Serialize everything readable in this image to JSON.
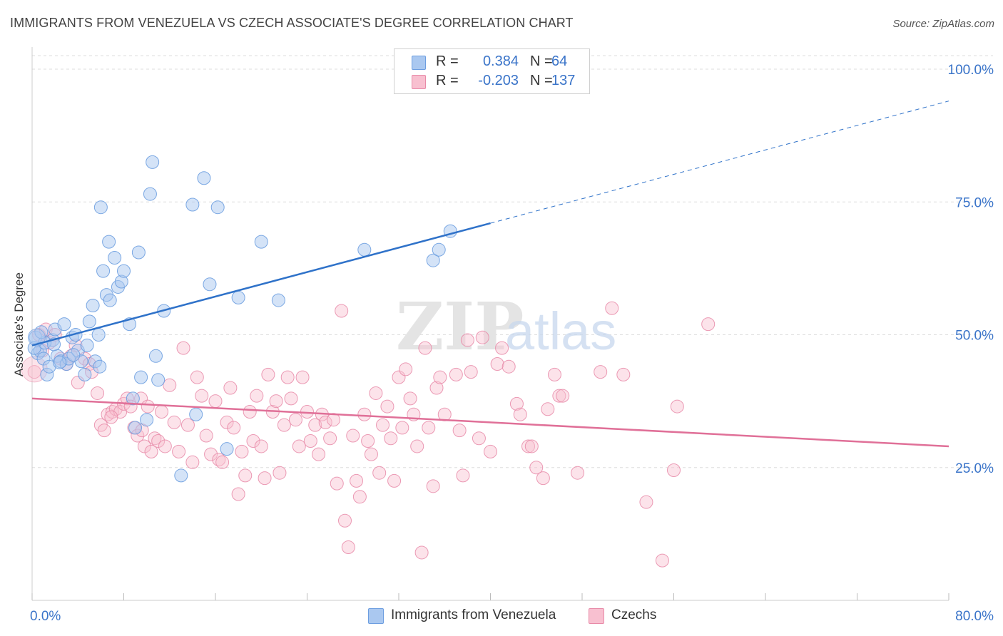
{
  "title": "IMMIGRANTS FROM VENEZUELA VS CZECH ASSOCIATE'S DEGREE CORRELATION CHART",
  "source": "Source: ZipAtlas.com",
  "legend": {
    "rows": [
      {
        "r_label": "R =",
        "r_value": "0.384",
        "n_label": "N =",
        "n_value": "64",
        "color": "#aac8f0",
        "border": "#6d9ee0"
      },
      {
        "r_label": "R =",
        "r_value": "-0.203",
        "n_label": "N =",
        "n_value": "137",
        "color": "#f8c0d0",
        "border": "#e88aa8"
      }
    ]
  },
  "bottom_legend": {
    "series1": "Immigrants from Venezuela",
    "series2": "Czechs"
  },
  "watermark": "ZIPatlas",
  "chart_data": {
    "type": "scatter",
    "title": "IMMIGRANTS FROM VENEZUELA VS CZECH ASSOCIATE'S DEGREE CORRELATION CHART",
    "xlabel": "",
    "ylabel": "Associate's Degree",
    "xlim": [
      0,
      80
    ],
    "ylim": [
      0,
      100
    ],
    "x_tick_labels": [
      "0.0%",
      "80.0%"
    ],
    "y_tick_labels": [
      "25.0%",
      "50.0%",
      "75.0%",
      "100.0%"
    ],
    "y_ticks": [
      25,
      50,
      75,
      100
    ],
    "grid": true,
    "legend_position": "top-center",
    "colors": {
      "blue": "#6d9ee0",
      "blue_fill": "#aac8f0",
      "blue_line": "#2f72c9",
      "pink": "#e88aa8",
      "pink_fill": "#f8c0d0",
      "pink_line": "#e07098",
      "axis_text": "#3a74c9"
    },
    "series": [
      {
        "name": "Immigrants from Venezuela",
        "trend": {
          "x0": 0,
          "y0": 48.0,
          "x1": 40,
          "y1": 71.0,
          "dashed_to_x": 80,
          "dashed_to_y": 94.0
        },
        "points": [
          [
            0.3,
            49.5
          ],
          [
            0.5,
            46.5
          ],
          [
            0.7,
            47.0
          ],
          [
            1.0,
            45.5
          ],
          [
            1.3,
            42.5
          ],
          [
            1.5,
            44.0
          ],
          [
            1.8,
            49.0
          ],
          [
            2.0,
            51.0
          ],
          [
            2.2,
            46.0
          ],
          [
            2.5,
            45.0
          ],
          [
            2.8,
            52.0
          ],
          [
            3.0,
            44.5
          ],
          [
            3.2,
            45.5
          ],
          [
            3.5,
            49.5
          ],
          [
            3.8,
            50.0
          ],
          [
            4.0,
            47.0
          ],
          [
            4.3,
            45.0
          ],
          [
            4.6,
            42.5
          ],
          [
            5.0,
            52.5
          ],
          [
            5.3,
            55.5
          ],
          [
            5.5,
            45.0
          ],
          [
            5.8,
            50.0
          ],
          [
            6.0,
            74.0
          ],
          [
            6.2,
            62.0
          ],
          [
            6.5,
            57.5
          ],
          [
            6.8,
            56.5
          ],
          [
            6.7,
            67.5
          ],
          [
            7.2,
            64.5
          ],
          [
            7.5,
            59.0
          ],
          [
            7.8,
            60.0
          ],
          [
            8.0,
            62.0
          ],
          [
            8.5,
            52.0
          ],
          [
            8.8,
            38.0
          ],
          [
            9.0,
            32.5
          ],
          [
            9.3,
            65.5
          ],
          [
            9.5,
            42.0
          ],
          [
            10.0,
            34.0
          ],
          [
            10.3,
            76.5
          ],
          [
            10.5,
            82.5
          ],
          [
            10.8,
            46.0
          ],
          [
            11.0,
            41.5
          ],
          [
            11.5,
            54.5
          ],
          [
            13.0,
            23.5
          ],
          [
            14.0,
            74.5
          ],
          [
            14.3,
            35.0
          ],
          [
            15.0,
            79.5
          ],
          [
            15.5,
            59.5
          ],
          [
            16.2,
            74.0
          ],
          [
            17.0,
            28.5
          ],
          [
            18.0,
            57.0
          ],
          [
            20.0,
            67.5
          ],
          [
            21.5,
            56.5
          ],
          [
            29.0,
            66.0
          ],
          [
            35.0,
            64.0
          ],
          [
            35.5,
            66.0
          ],
          [
            36.5,
            69.5
          ],
          [
            0.2,
            47.5
          ],
          [
            1.1,
            48.5
          ],
          [
            2.4,
            44.8
          ],
          [
            3.6,
            46.2
          ],
          [
            4.8,
            48.0
          ],
          [
            5.9,
            44.0
          ],
          [
            0.8,
            50.5
          ],
          [
            1.9,
            48.2
          ]
        ]
      },
      {
        "name": "Czechs",
        "trend": {
          "x0": 0,
          "y0": 38.0,
          "x1": 80,
          "y1": 29.0
        },
        "points": [
          [
            0.2,
            43.0
          ],
          [
            0.6,
            50.0
          ],
          [
            1.2,
            51.0
          ],
          [
            1.5,
            48.5
          ],
          [
            2.0,
            50.0
          ],
          [
            2.5,
            45.5
          ],
          [
            3.0,
            44.5
          ],
          [
            3.4,
            46.0
          ],
          [
            4.0,
            41.0
          ],
          [
            4.6,
            45.5
          ],
          [
            5.0,
            44.5
          ],
          [
            5.2,
            43.0
          ],
          [
            5.7,
            39.0
          ],
          [
            6.0,
            33.0
          ],
          [
            6.3,
            32.0
          ],
          [
            6.6,
            35.0
          ],
          [
            7.0,
            35.5
          ],
          [
            7.3,
            36.0
          ],
          [
            7.7,
            35.5
          ],
          [
            8.0,
            37.0
          ],
          [
            8.3,
            38.0
          ],
          [
            8.6,
            36.5
          ],
          [
            8.9,
            32.5
          ],
          [
            9.2,
            31.0
          ],
          [
            9.5,
            38.0
          ],
          [
            9.8,
            29.0
          ],
          [
            10.1,
            36.5
          ],
          [
            10.4,
            28.0
          ],
          [
            10.7,
            30.5
          ],
          [
            11.0,
            30.0
          ],
          [
            11.3,
            35.5
          ],
          [
            11.6,
            29.0
          ],
          [
            12.0,
            40.5
          ],
          [
            12.4,
            33.5
          ],
          [
            12.8,
            28.0
          ],
          [
            13.2,
            47.5
          ],
          [
            13.6,
            33.0
          ],
          [
            14.0,
            26.0
          ],
          [
            14.4,
            42.0
          ],
          [
            14.8,
            38.5
          ],
          [
            15.2,
            31.0
          ],
          [
            15.6,
            27.5
          ],
          [
            16.0,
            37.5
          ],
          [
            16.3,
            26.5
          ],
          [
            16.6,
            26.0
          ],
          [
            17.0,
            33.5
          ],
          [
            17.3,
            40.0
          ],
          [
            17.6,
            32.5
          ],
          [
            18.0,
            20.0
          ],
          [
            18.3,
            28.0
          ],
          [
            18.6,
            23.5
          ],
          [
            19.0,
            35.5
          ],
          [
            19.3,
            30.0
          ],
          [
            19.6,
            38.5
          ],
          [
            20.0,
            29.0
          ],
          [
            20.3,
            23.0
          ],
          [
            20.6,
            42.5
          ],
          [
            21.0,
            35.5
          ],
          [
            21.3,
            37.5
          ],
          [
            21.6,
            24.0
          ],
          [
            22.0,
            33.0
          ],
          [
            22.3,
            42.0
          ],
          [
            22.6,
            38.0
          ],
          [
            23.0,
            34.0
          ],
          [
            23.3,
            29.0
          ],
          [
            23.6,
            42.0
          ],
          [
            24.0,
            35.5
          ],
          [
            24.3,
            30.0
          ],
          [
            24.7,
            33.0
          ],
          [
            25.0,
            27.5
          ],
          [
            25.3,
            35.0
          ],
          [
            25.6,
            33.5
          ],
          [
            26.0,
            30.5
          ],
          [
            26.3,
            34.0
          ],
          [
            26.6,
            22.0
          ],
          [
            27.0,
            54.5
          ],
          [
            27.3,
            15.0
          ],
          [
            27.6,
            10.0
          ],
          [
            28.0,
            31.0
          ],
          [
            28.3,
            22.5
          ],
          [
            28.6,
            19.5
          ],
          [
            29.0,
            35.0
          ],
          [
            29.3,
            30.0
          ],
          [
            29.6,
            27.5
          ],
          [
            30.0,
            39.0
          ],
          [
            30.3,
            24.0
          ],
          [
            30.6,
            33.0
          ],
          [
            31.0,
            36.5
          ],
          [
            31.3,
            30.5
          ],
          [
            31.6,
            22.5
          ],
          [
            32.0,
            42.0
          ],
          [
            32.3,
            32.5
          ],
          [
            32.6,
            43.5
          ],
          [
            33.0,
            38.0
          ],
          [
            33.3,
            35.0
          ],
          [
            33.6,
            29.0
          ],
          [
            34.0,
            9.0
          ],
          [
            34.3,
            47.5
          ],
          [
            34.6,
            32.5
          ],
          [
            35.0,
            21.5
          ],
          [
            35.3,
            40.0
          ],
          [
            35.6,
            42.0
          ],
          [
            36.0,
            35.0
          ],
          [
            37.0,
            42.5
          ],
          [
            37.3,
            32.0
          ],
          [
            37.6,
            23.5
          ],
          [
            38.0,
            49.0
          ],
          [
            38.3,
            43.0
          ],
          [
            39.0,
            30.5
          ],
          [
            39.3,
            49.5
          ],
          [
            40.0,
            28.0
          ],
          [
            40.6,
            44.5
          ],
          [
            41.0,
            47.5
          ],
          [
            41.6,
            44.0
          ],
          [
            42.3,
            37.0
          ],
          [
            42.6,
            35.0
          ],
          [
            43.3,
            29.0
          ],
          [
            43.6,
            29.0
          ],
          [
            44.0,
            25.0
          ],
          [
            44.6,
            23.0
          ],
          [
            45.0,
            36.0
          ],
          [
            45.6,
            42.5
          ],
          [
            46.0,
            38.5
          ],
          [
            46.3,
            38.5
          ],
          [
            47.6,
            24.0
          ],
          [
            49.6,
            43.0
          ],
          [
            50.6,
            55.0
          ],
          [
            51.6,
            42.5
          ],
          [
            53.6,
            18.5
          ],
          [
            55.0,
            7.5
          ],
          [
            56.0,
            24.5
          ],
          [
            56.3,
            36.5
          ],
          [
            59.0,
            52.0
          ],
          [
            0.9,
            47.0
          ],
          [
            3.8,
            48.0
          ],
          [
            6.9,
            34.5
          ],
          [
            9.6,
            32.0
          ]
        ]
      }
    ]
  }
}
